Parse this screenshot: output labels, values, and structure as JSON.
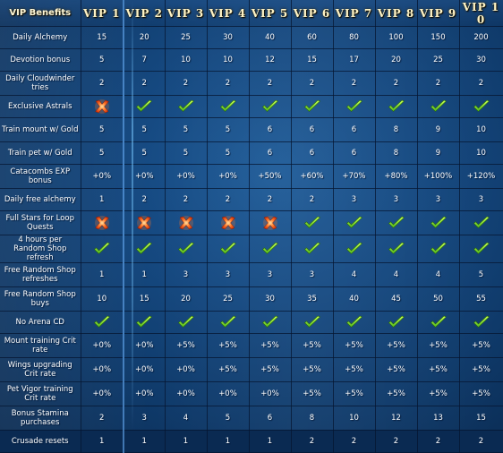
{
  "header": {
    "benefit_label": "VIP Benefits",
    "vip_labels": [
      "VIP 1",
      "VIP 2",
      "VIP 3",
      "VIP 4",
      "VIP 5",
      "VIP 6",
      "VIP 7",
      "VIP 8",
      "VIP 9",
      "VIP 1 0"
    ]
  },
  "rows": [
    {
      "label": "Daily Alchemy",
      "values": [
        "15",
        "20",
        "25",
        "30",
        "40",
        "60",
        "80",
        "100",
        "150",
        "200"
      ]
    },
    {
      "label": "Devotion bonus",
      "values": [
        "5",
        "7",
        "10",
        "10",
        "12",
        "15",
        "17",
        "20",
        "25",
        "30"
      ]
    },
    {
      "label": "Daily Cloudwinder tries",
      "values": [
        "2",
        "2",
        "2",
        "2",
        "2",
        "2",
        "2",
        "2",
        "2",
        "2"
      ]
    },
    {
      "label": "Exclusive Astrals",
      "values": [
        "cross",
        "check",
        "check",
        "check",
        "check",
        "check",
        "check",
        "check",
        "check",
        "check"
      ]
    },
    {
      "label": "Train mount w/ Gold",
      "values": [
        "5",
        "5",
        "5",
        "5",
        "6",
        "6",
        "6",
        "8",
        "9",
        "10"
      ]
    },
    {
      "label": "Train pet w/ Gold",
      "values": [
        "5",
        "5",
        "5",
        "5",
        "6",
        "6",
        "6",
        "8",
        "9",
        "10"
      ]
    },
    {
      "label": "Catacombs EXP bonus",
      "values": [
        "+0%",
        "+0%",
        "+0%",
        "+0%",
        "+50%",
        "+60%",
        "+70%",
        "+80%",
        "+100%",
        "+120%"
      ]
    },
    {
      "label": "Daily free alchemy",
      "values": [
        "1",
        "2",
        "2",
        "2",
        "2",
        "2",
        "3",
        "3",
        "3",
        "3"
      ]
    },
    {
      "label": "Full Stars for Loop Quests",
      "values": [
        "cross",
        "cross",
        "cross",
        "cross",
        "cross",
        "check",
        "check",
        "check",
        "check",
        "check"
      ]
    },
    {
      "label": "4 hours per Random Shop refresh",
      "values": [
        "check",
        "check",
        "check",
        "check",
        "check",
        "check",
        "check",
        "check",
        "check",
        "check"
      ]
    },
    {
      "label": "Free Random Shop refreshes",
      "values": [
        "1",
        "1",
        "3",
        "3",
        "3",
        "3",
        "4",
        "4",
        "4",
        "5"
      ]
    },
    {
      "label": "Free Random Shop buys",
      "values": [
        "10",
        "15",
        "20",
        "25",
        "30",
        "35",
        "40",
        "45",
        "50",
        "55"
      ]
    },
    {
      "label": "No Arena CD",
      "values": [
        "check",
        "check",
        "check",
        "check",
        "check",
        "check",
        "check",
        "check",
        "check",
        "check"
      ]
    },
    {
      "label": "Mount training Crit rate",
      "values": [
        "+0%",
        "+0%",
        "+5%",
        "+5%",
        "+5%",
        "+5%",
        "+5%",
        "+5%",
        "+5%",
        "+5%"
      ]
    },
    {
      "label": "Wings upgrading Crit rate",
      "values": [
        "+0%",
        "+0%",
        "+0%",
        "+5%",
        "+5%",
        "+5%",
        "+5%",
        "+5%",
        "+5%",
        "+5%"
      ]
    },
    {
      "label": "Pet Vigor training Crit rate",
      "values": [
        "+0%",
        "+0%",
        "+0%",
        "+0%",
        "+0%",
        "+5%",
        "+5%",
        "+5%",
        "+5%",
        "+5%"
      ]
    },
    {
      "label": "Bonus Stamina purchases",
      "values": [
        "2",
        "3",
        "4",
        "5",
        "6",
        "8",
        "10",
        "12",
        "13",
        "15"
      ]
    },
    {
      "label": "Crusade resets",
      "values": [
        "1",
        "1",
        "1",
        "1",
        "1",
        "2",
        "2",
        "2",
        "2",
        "2"
      ]
    }
  ],
  "icons": {
    "check": "check-icon",
    "cross": "cross-icon"
  },
  "colors": {
    "check": "#8fe82a",
    "cross": "#ff5a1e",
    "header_text": "#fff3c4",
    "background": "#164a82"
  }
}
